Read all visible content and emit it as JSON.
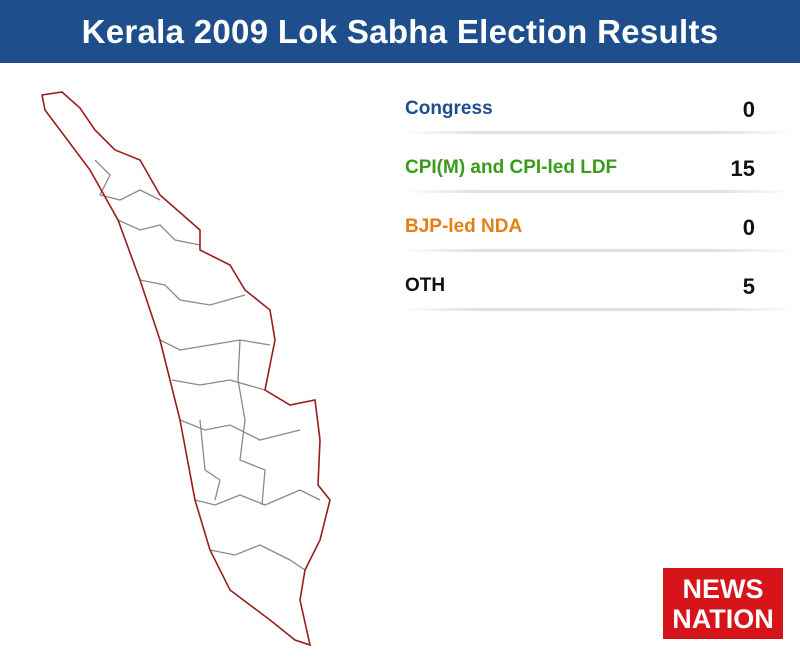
{
  "header": {
    "title": "Kerala 2009 Lok Sabha Election Results"
  },
  "results": [
    {
      "party": "Congress",
      "seats": 0,
      "color": "#1f4e8c"
    },
    {
      "party": "CPI(M) and CPI-led LDF",
      "seats": 15,
      "color": "#3a9a1a"
    },
    {
      "party": "BJP-led NDA",
      "seats": 0,
      "color": "#e67e10"
    },
    {
      "party": "OTH",
      "seats": 5,
      "color": "#111111"
    }
  ],
  "logo": {
    "line1": "NEWS",
    "line2": "NATION"
  }
}
